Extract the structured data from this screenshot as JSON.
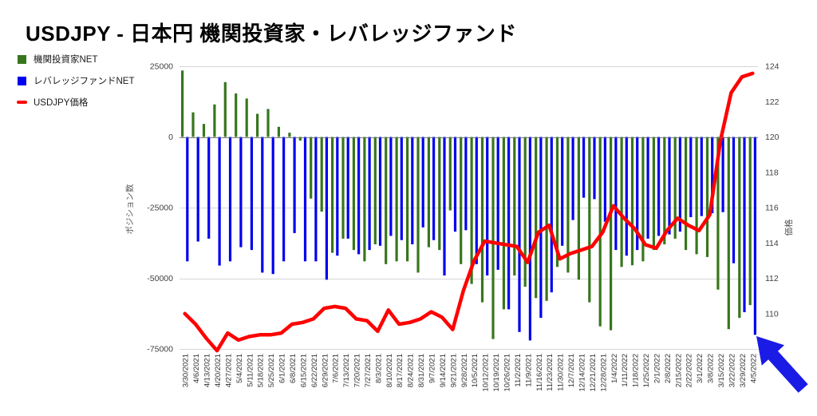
{
  "title": "USDJPY - 日本円 機関投資家・レバレッジファンド",
  "legend": {
    "position": "top-left",
    "items": [
      {
        "label": "機関投資家NET",
        "color": "#38761d",
        "swatch": "square"
      },
      {
        "label": "レバレッジファンドNET",
        "color": "#0000f0",
        "swatch": "square"
      },
      {
        "label": "USDJPY価格",
        "color": "#ff0000",
        "swatch": "dash"
      }
    ]
  },
  "annotations": {
    "arrow": {
      "shape": "thick-arrow",
      "direction": "up-left",
      "color": "#1b1be6",
      "points_at": "4/5/2022 レバレッジファンドNET bar"
    }
  },
  "chart_data": {
    "type": "bar",
    "subtype": "bar+line combo, weekly",
    "grid": true,
    "legend_position": "top-left",
    "categories": [
      "3/30/2021",
      "4/6/2021",
      "4/13/2021",
      "4/20/2021",
      "4/27/2021",
      "5/4/2021",
      "5/11/2021",
      "5/18/2021",
      "5/25/2021",
      "6/1/2021",
      "6/8/2021",
      "6/15/2021",
      "6/22/2021",
      "6/29/2021",
      "7/6/2021",
      "7/13/2021",
      "7/20/2021",
      "7/27/2021",
      "8/3/2021",
      "8/10/2021",
      "8/17/2021",
      "8/24/2021",
      "8/31/2021",
      "9/7/2021",
      "9/14/2021",
      "9/21/2021",
      "9/28/2021",
      "10/5/2021",
      "10/12/2021",
      "10/19/2021",
      "10/26/2021",
      "11/2/2021",
      "11/9/2021",
      "11/16/2021",
      "11/23/2021",
      "11/30/2021",
      "12/7/2021",
      "12/14/2021",
      "12/21/2021",
      "12/28/2021",
      "1/4/2022",
      "1/11/2022",
      "1/18/2022",
      "1/25/2022",
      "2/1/2022",
      "2/8/2022",
      "2/15/2022",
      "2/22/2022",
      "3/1/2022",
      "3/8/2022",
      "3/15/2022",
      "3/22/2022",
      "3/29/2022",
      "4/5/2022"
    ],
    "series": [
      {
        "name": "機関投資家NET",
        "type": "bar",
        "axis": "left",
        "color": "#38761d",
        "values": [
          23500,
          8700,
          4600,
          11500,
          19400,
          15400,
          13600,
          8200,
          9900,
          3600,
          1500,
          -1300,
          -21800,
          -26400,
          -41000,
          -36000,
          -40000,
          -44000,
          -38000,
          -45000,
          -44000,
          -44000,
          -48000,
          -39000,
          -40000,
          -26000,
          -45000,
          -52000,
          -58500,
          -71500,
          -61000,
          -49000,
          -53000,
          -57000,
          -58000,
          -46000,
          -48000,
          -50500,
          -58500,
          -67000,
          -68400,
          -46000,
          -45400,
          -44000,
          -40000,
          -38000,
          -36000,
          -40000,
          -41500,
          -42500,
          -54000,
          -68000,
          -64000,
          -59500
        ]
      },
      {
        "name": "レバレッジファンドNET",
        "type": "bar",
        "axis": "left",
        "color": "#0000f0",
        "values": [
          -44000,
          -37000,
          -36000,
          -45500,
          -44000,
          -39000,
          -40000,
          -48000,
          -48500,
          -44000,
          -34000,
          -44000,
          -44000,
          -50500,
          -42000,
          -36000,
          -41500,
          -40000,
          -38500,
          -35000,
          -36500,
          -38000,
          -32000,
          -36500,
          -49000,
          -33500,
          -33000,
          -45000,
          -49000,
          -47000,
          -61000,
          -69000,
          -72000,
          -64000,
          -55000,
          -38500,
          -29400,
          -21500,
          -22000,
          -30000,
          -40000,
          -42000,
          -40000,
          -36000,
          -35000,
          -34500,
          -33500,
          -28400,
          -28000,
          -27000,
          -26600,
          -44700,
          -62000,
          -70000
        ]
      },
      {
        "name": "USDJPY価格",
        "type": "line",
        "axis": "right",
        "color": "#ff0000",
        "values": [
          110.0,
          109.4,
          108.6,
          107.9,
          108.9,
          108.5,
          108.7,
          108.8,
          108.8,
          108.9,
          109.4,
          109.5,
          109.7,
          110.3,
          110.4,
          110.3,
          109.7,
          109.6,
          109.0,
          110.2,
          109.4,
          109.5,
          109.7,
          110.1,
          109.8,
          109.1,
          111.3,
          113.0,
          114.1,
          114.0,
          113.9,
          113.8,
          112.9,
          114.6,
          115.0,
          113.1,
          113.4,
          113.6,
          113.8,
          114.6,
          116.1,
          115.4,
          114.8,
          113.9,
          113.7,
          114.7,
          115.4,
          115.0,
          114.7,
          115.6,
          119.8,
          122.5,
          123.4,
          123.6
        ]
      }
    ],
    "left_axis": {
      "title": "ポジション数",
      "ticks": [
        25000,
        0,
        -25000,
        -50000,
        -75000
      ],
      "range": [
        -75000,
        25000
      ]
    },
    "right_axis": {
      "title": "価格",
      "ticks": [
        124,
        122,
        120,
        118,
        116,
        114,
        112,
        110
      ],
      "range": [
        108,
        124
      ]
    }
  }
}
